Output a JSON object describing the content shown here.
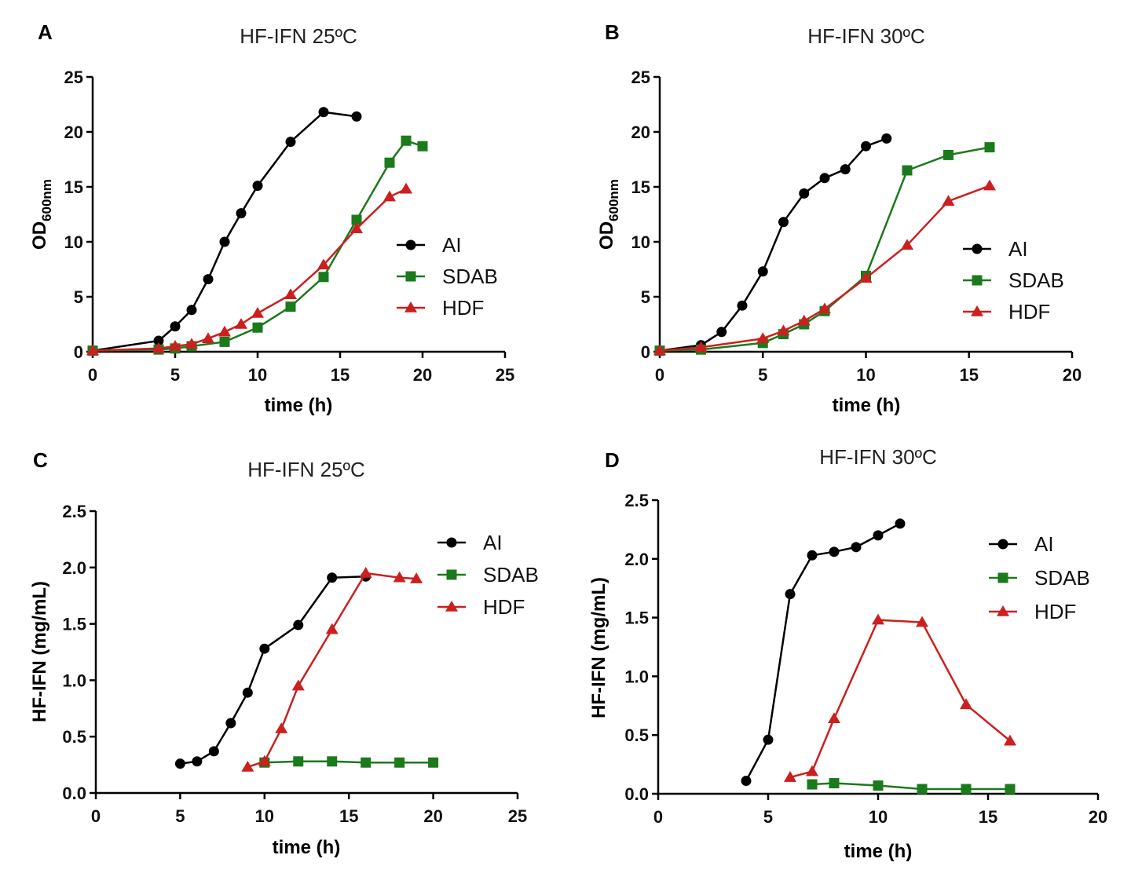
{
  "colors": {
    "AI": "#000000",
    "SDAB": "#1b7a1b",
    "HDF": "#cc1f1f"
  },
  "chart_data": [
    {
      "panel": "A",
      "type": "line",
      "title": "HF-IFN  25ºC",
      "xlabel": "time (h)",
      "ylabel_main": "OD",
      "ylabel_sub": "600nm",
      "xlim": [
        0,
        25
      ],
      "ylim": [
        0,
        25
      ],
      "xticks": [
        "0",
        "5",
        "10",
        "15",
        "20",
        "25"
      ],
      "yticks": [
        "0",
        "5",
        "10",
        "15",
        "20",
        "25"
      ],
      "legend": [
        "AI",
        "SDAB",
        "HDF"
      ],
      "series": [
        {
          "name": "AI",
          "marker": "circle",
          "x": [
            0,
            4,
            5,
            6,
            7,
            8,
            9,
            10,
            12,
            14,
            16
          ],
          "y": [
            0.1,
            1.0,
            2.3,
            3.8,
            6.6,
            10.0,
            12.6,
            15.1,
            19.1,
            21.8,
            21.4
          ]
        },
        {
          "name": "SDAB",
          "marker": "square",
          "x": [
            0,
            4,
            5,
            6,
            8,
            10,
            12,
            14,
            16,
            18,
            19,
            20
          ],
          "y": [
            0.1,
            0.2,
            0.3,
            0.5,
            0.9,
            2.2,
            4.1,
            6.8,
            12.0,
            17.2,
            19.2,
            18.7
          ]
        },
        {
          "name": "HDF",
          "marker": "triangle",
          "x": [
            0,
            4,
            5,
            6,
            7,
            8,
            9,
            10,
            12,
            14,
            16,
            18,
            19
          ],
          "y": [
            0.1,
            0.3,
            0.5,
            0.7,
            1.2,
            1.8,
            2.5,
            3.5,
            5.2,
            7.9,
            11.2,
            14.1,
            14.8
          ]
        }
      ]
    },
    {
      "panel": "B",
      "type": "line",
      "title": "HF-IFN 30ºC",
      "xlabel": "time  (h)",
      "ylabel_main": "OD",
      "ylabel_sub": "600nm",
      "xlim": [
        0,
        20
      ],
      "ylim": [
        0,
        25
      ],
      "xticks": [
        "0",
        "5",
        "10",
        "15",
        "20"
      ],
      "yticks": [
        "0",
        "5",
        "10",
        "15",
        "20",
        "25"
      ],
      "legend": [
        "AI",
        "SDAB",
        "HDF"
      ],
      "series": [
        {
          "name": "AI",
          "marker": "circle",
          "x": [
            0,
            2,
            3,
            4,
            5,
            6,
            7,
            8,
            9,
            10,
            11
          ],
          "y": [
            0.1,
            0.6,
            1.8,
            4.2,
            7.3,
            11.8,
            14.4,
            15.8,
            16.6,
            18.7,
            19.4
          ]
        },
        {
          "name": "SDAB",
          "marker": "square",
          "x": [
            0,
            2,
            5,
            6,
            7,
            8,
            10,
            12,
            14,
            16
          ],
          "y": [
            0.1,
            0.2,
            0.8,
            1.6,
            2.5,
            3.7,
            6.9,
            16.5,
            17.9,
            18.6
          ]
        },
        {
          "name": "HDF",
          "marker": "triangle",
          "x": [
            0,
            2,
            5,
            6,
            7,
            8,
            10,
            12,
            14,
            16
          ],
          "y": [
            0.1,
            0.4,
            1.2,
            1.9,
            2.8,
            3.9,
            6.7,
            9.7,
            13.7,
            15.1
          ]
        }
      ]
    },
    {
      "panel": "C",
      "type": "line",
      "title": "HF-IFN  25ºC",
      "xlabel": "time (h)",
      "ylabel_main": "HF-IFN (mg/mL)",
      "ylabel_sub": "",
      "xlim": [
        0,
        25
      ],
      "ylim": [
        0,
        2.5
      ],
      "xticks": [
        "0",
        "5",
        "10",
        "15",
        "20",
        "25"
      ],
      "yticks": [
        "0.0",
        "0.5",
        "1.0",
        "1.5",
        "2.0",
        "2.5"
      ],
      "legend": [
        "AI",
        "SDAB",
        "HDF"
      ],
      "series": [
        {
          "name": "AI",
          "marker": "circle",
          "x": [
            5,
            6,
            7,
            8,
            9,
            10,
            12,
            14,
            16
          ],
          "y": [
            0.26,
            0.28,
            0.37,
            0.62,
            0.89,
            1.28,
            1.49,
            1.91,
            1.92
          ]
        },
        {
          "name": "SDAB",
          "marker": "square",
          "x": [
            10,
            12,
            14,
            16,
            18,
            20
          ],
          "y": [
            0.27,
            0.28,
            0.28,
            0.27,
            0.27,
            0.27
          ]
        },
        {
          "name": "HDF",
          "marker": "triangle",
          "x": [
            9,
            10,
            11,
            12,
            14,
            16,
            18,
            19
          ],
          "y": [
            0.23,
            0.28,
            0.57,
            0.95,
            1.45,
            1.95,
            1.91,
            1.9
          ]
        }
      ]
    },
    {
      "panel": "D",
      "type": "line",
      "title": "HF-IFN  30ºC",
      "xlabel": "time (h)",
      "ylabel_main": "HF-IFN (mg/mL)",
      "ylabel_sub": "",
      "xlim": [
        0,
        20
      ],
      "ylim": [
        0,
        2.5
      ],
      "xticks": [
        "0",
        "5",
        "10",
        "15",
        "20"
      ],
      "yticks": [
        "0.0",
        "0.5",
        "1.0",
        "1.5",
        "2.0",
        "2.5"
      ],
      "legend": [
        "AI",
        "SDAB",
        "HDF"
      ],
      "series": [
        {
          "name": "AI",
          "marker": "circle",
          "x": [
            4,
            5,
            6,
            7,
            8,
            9,
            10,
            11
          ],
          "y": [
            0.11,
            0.46,
            1.7,
            2.03,
            2.06,
            2.1,
            2.2,
            2.3
          ]
        },
        {
          "name": "SDAB",
          "marker": "square",
          "x": [
            7,
            8,
            10,
            12,
            14,
            16
          ],
          "y": [
            0.08,
            0.09,
            0.07,
            0.04,
            0.04,
            0.04
          ]
        },
        {
          "name": "HDF",
          "marker": "triangle",
          "x": [
            6,
            7,
            8,
            10,
            12,
            14,
            16
          ],
          "y": [
            0.14,
            0.19,
            0.64,
            1.48,
            1.46,
            0.76,
            0.45
          ]
        }
      ]
    }
  ]
}
